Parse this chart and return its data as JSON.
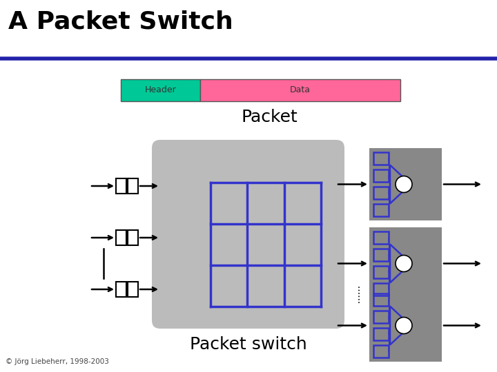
{
  "title": "A Packet Switch",
  "subtitle_packet": "Packet",
  "subtitle_switch": "Packet switch",
  "copyright": "© Jörg Liebeherr, 1998-2003",
  "header_label": "Header",
  "data_label": "Data",
  "header_color": "#00C896",
  "data_color": "#FF6699",
  "header_text_color": "#333333",
  "title_color": "#000000",
  "bg_color": "#FFFFFF",
  "bar_border_color": "#555555",
  "title_bar_color": "#2222AA",
  "switch_box_color": "#BBBBBB",
  "output_box_color": "#888888",
  "grid_color": "#3333CC",
  "arrow_color": "#000000"
}
